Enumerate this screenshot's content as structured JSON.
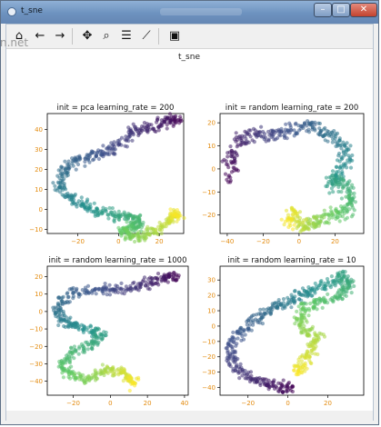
{
  "window": {
    "title": "t_sne",
    "close_glyph": "✕",
    "min_glyph": "–",
    "max_glyph": "□"
  },
  "toolbar": {
    "items": [
      {
        "name": "home-icon",
        "glyph": "⌂"
      },
      {
        "name": "back-icon",
        "glyph": "←"
      },
      {
        "name": "forward-icon",
        "glyph": "→"
      },
      {
        "name": "pan-icon",
        "glyph": "✥"
      },
      {
        "name": "zoom-icon",
        "glyph": "⌕"
      },
      {
        "name": "configure-subplots-icon",
        "glyph": "☰"
      },
      {
        "name": "edit-axis-icon",
        "glyph": "⟋"
      },
      {
        "name": "save-icon",
        "glyph": "▣"
      }
    ]
  },
  "watermark": "n.net",
  "figure": {
    "suptitle": "t_sne",
    "tick_color": "#e38b0f"
  },
  "chart_data": [
    {
      "type": "scatter",
      "title": "init = pca learning_rate = 200",
      "xticks": [
        -20,
        0,
        20
      ],
      "yticks": [
        -10,
        0,
        10,
        20,
        30,
        40
      ],
      "xlim": [
        -35,
        32
      ],
      "ylim": [
        -12,
        48
      ],
      "path": [
        [
          30,
          44
        ],
        [
          25,
          45
        ],
        [
          18,
          42
        ],
        [
          10,
          40
        ],
        [
          3,
          35
        ],
        [
          -5,
          30
        ],
        [
          -12,
          27
        ],
        [
          -20,
          25
        ],
        [
          -27,
          20
        ],
        [
          -29,
          12
        ],
        [
          -24,
          6
        ],
        [
          -17,
          2
        ],
        [
          -10,
          -1
        ],
        [
          -2,
          -3
        ],
        [
          5,
          -4
        ],
        [
          10,
          -6
        ],
        [
          8,
          -9
        ],
        [
          2,
          -10
        ],
        [
          5,
          -13
        ],
        [
          12,
          -14
        ],
        [
          18,
          -11
        ],
        [
          24,
          -6
        ],
        [
          29,
          -3
        ],
        [
          28,
          -2
        ]
      ],
      "colormap": "viridis"
    },
    {
      "type": "scatter",
      "title": "init = random learning_rate = 200",
      "xticks": [
        -40,
        -20,
        0,
        20
      ],
      "yticks": [
        -20,
        -10,
        0,
        10,
        20
      ],
      "xlim": [
        -44,
        36
      ],
      "ylim": [
        -28,
        24
      ],
      "path": [
        [
          -37,
          -4
        ],
        [
          -39,
          5
        ],
        [
          -33,
          13
        ],
        [
          -24,
          16
        ],
        [
          -14,
          14
        ],
        [
          -5,
          17
        ],
        [
          5,
          19
        ],
        [
          14,
          16
        ],
        [
          22,
          12
        ],
        [
          28,
          5
        ],
        [
          22,
          -2
        ],
        [
          17,
          -7
        ],
        [
          25,
          -6
        ],
        [
          30,
          -12
        ],
        [
          27,
          -18
        ],
        [
          20,
          -20
        ],
        [
          12,
          -21
        ],
        [
          6,
          -23
        ],
        [
          1,
          -24
        ],
        [
          -3,
          -19
        ],
        [
          -6,
          -24
        ]
      ],
      "colormap": "viridis"
    },
    {
      "type": "scatter",
      "title": "init = random learning_rate = 1000",
      "xticks": [
        -20,
        0,
        20,
        40
      ],
      "yticks": [
        -40,
        -30,
        -20,
        -10,
        0,
        10,
        20
      ],
      "xlim": [
        -34,
        42
      ],
      "ylim": [
        -48,
        26
      ],
      "path": [
        [
          36,
          20
        ],
        [
          30,
          19
        ],
        [
          22,
          17
        ],
        [
          12,
          14
        ],
        [
          2,
          13
        ],
        [
          -8,
          12
        ],
        [
          -20,
          10
        ],
        [
          -28,
          4
        ],
        [
          -27,
          -4
        ],
        [
          -20,
          -8
        ],
        [
          -12,
          -11
        ],
        [
          -4,
          -13
        ],
        [
          -10,
          -19
        ],
        [
          -20,
          -23
        ],
        [
          -26,
          -30
        ],
        [
          -22,
          -37
        ],
        [
          -12,
          -39
        ],
        [
          -4,
          -33
        ],
        [
          4,
          -34
        ],
        [
          10,
          -38
        ],
        [
          13,
          -42
        ]
      ],
      "colormap": "viridis"
    },
    {
      "type": "scatter",
      "title": "init = random learning_rate = 10",
      "xticks": [
        -20,
        0,
        20
      ],
      "yticks": [
        -40,
        -30,
        -20,
        -10,
        0,
        10,
        20,
        30
      ],
      "xlim": [
        -34,
        38
      ],
      "ylim": [
        -45,
        39
      ],
      "path": [
        [
          3,
          -40
        ],
        [
          -4,
          -40
        ],
        [
          -12,
          -37
        ],
        [
          -20,
          -33
        ],
        [
          -27,
          -25
        ],
        [
          -29,
          -15
        ],
        [
          -25,
          -5
        ],
        [
          -18,
          3
        ],
        [
          -10,
          10
        ],
        [
          -3,
          15
        ],
        [
          5,
          19
        ],
        [
          12,
          23
        ],
        [
          20,
          28
        ],
        [
          28,
          33
        ],
        [
          30,
          27
        ],
        [
          27,
          21
        ],
        [
          18,
          16
        ],
        [
          10,
          13
        ],
        [
          5,
          6
        ],
        [
          9,
          -2
        ],
        [
          14,
          -8
        ],
        [
          12,
          -16
        ],
        [
          8,
          -25
        ],
        [
          5,
          -32
        ]
      ],
      "colormap": "viridis"
    }
  ]
}
